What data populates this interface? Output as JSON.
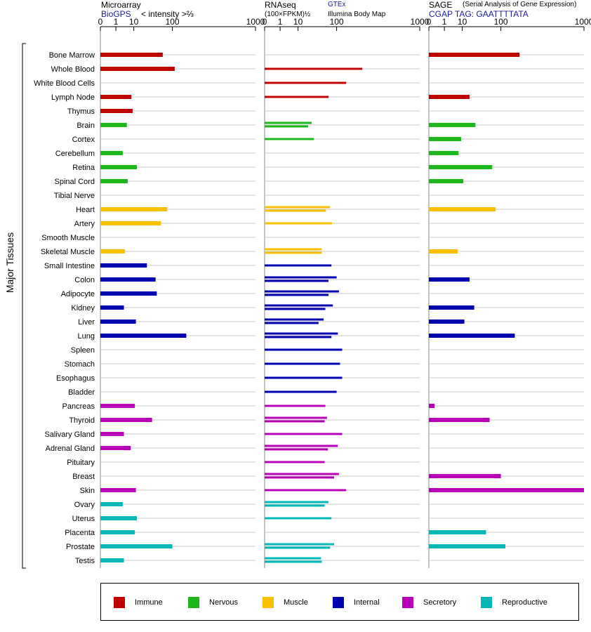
{
  "headers": {
    "microarray": {
      "title": "Microarray",
      "source": "BioGPS",
      "unit": "< intensity >⅔"
    },
    "rnaseq": {
      "title": "RNAseq",
      "unit": "(100×FPKM)½",
      "source": "GTEx",
      "source2": "Illumina Body Map"
    },
    "sage": {
      "title": "SAGE",
      "subtitle": "(Serial Analysis of Gene Expression)",
      "tag": "CGAP TAG: GAATTTTATA"
    }
  },
  "y_axis_label": "Major Tissues",
  "legend": [
    {
      "label": "Immune",
      "color": "#c00000"
    },
    {
      "label": "Nervous",
      "color": "#1ab81a"
    },
    {
      "label": "Muscle",
      "color": "#f8c000"
    },
    {
      "label": "Internal",
      "color": "#0000b0"
    },
    {
      "label": "Secretory",
      "color": "#b800b8"
    },
    {
      "label": "Reproductive",
      "color": "#00b8b8"
    }
  ],
  "chart_data": {
    "type": "bar",
    "scale": "power",
    "tick_labels": [
      "0",
      "1",
      "10",
      "100",
      "1000"
    ],
    "xlim": [
      0,
      1000
    ],
    "categories": [
      "Bone Marrow",
      "Whole Blood",
      "White Blood Cells",
      "Lymph Node",
      "Thymus",
      "Brain",
      "Cortex",
      "Cerebellum",
      "Retina",
      "Spinal Cord",
      "Tibial Nerve",
      "Heart",
      "Artery",
      "Smooth Muscle",
      "Skeletal Muscle",
      "Small Intestine",
      "Colon",
      "Adipocyte",
      "Kidney",
      "Liver",
      "Lung",
      "Spleen",
      "Stomach",
      "Esophagus",
      "Bladder",
      "Pancreas",
      "Thyroid",
      "Salivary Gland",
      "Adrenal Gland",
      "Pituitary",
      "Breast",
      "Skin",
      "Ovary",
      "Uterus",
      "Placenta",
      "Prostate",
      "Testis"
    ],
    "systems": [
      "Immune",
      "Immune",
      "Immune",
      "Immune",
      "Immune",
      "Nervous",
      "Nervous",
      "Nervous",
      "Nervous",
      "Nervous",
      "Nervous",
      "Muscle",
      "Muscle",
      "Muscle",
      "Muscle",
      "Internal",
      "Internal",
      "Internal",
      "Internal",
      "Internal",
      "Internal",
      "Internal",
      "Internal",
      "Internal",
      "Internal",
      "Secretory",
      "Secretory",
      "Secretory",
      "Secretory",
      "Secretory",
      "Secretory",
      "Secretory",
      "Reproductive",
      "Reproductive",
      "Reproductive",
      "Reproductive",
      "Reproductive"
    ],
    "series": [
      {
        "name": "Microarray",
        "values": [
          65,
          110,
          null,
          8,
          9,
          5,
          null,
          3,
          13,
          5.5,
          null,
          80,
          60,
          null,
          4,
          27,
          45,
          48,
          3.5,
          12,
          170,
          null,
          null,
          null,
          null,
          11,
          37,
          3.5,
          7.5,
          null,
          null,
          12,
          3,
          13,
          11,
          100,
          3.5
        ]
      },
      {
        "name": "RNAseq",
        "values": [
          [
            null
          ],
          [
            250
          ],
          [
            145
          ],
          [
            70
          ],
          [
            null
          ],
          [
            28,
            22
          ],
          [
            32
          ],
          [
            null
          ],
          [
            null
          ],
          [
            null
          ],
          [
            null
          ],
          [
            75,
            62
          ],
          [
            82
          ],
          [
            null
          ],
          [
            50,
            50
          ],
          [
            80
          ],
          [
            100,
            70
          ],
          [
            110,
            70
          ],
          [
            85,
            60
          ],
          [
            55,
            42
          ],
          [
            105,
            80
          ],
          [
            125
          ],
          [
            115
          ],
          [
            125
          ],
          [
            100
          ],
          [
            60
          ],
          [
            65,
            58
          ],
          [
            125
          ],
          [
            105,
            68
          ],
          [
            58
          ],
          [
            110,
            90
          ],
          [
            145
          ],
          [
            70,
            58
          ],
          [
            80
          ],
          [
            null
          ],
          [
            90,
            75
          ],
          [
            48,
            50
          ]
        ]
      },
      {
        "name": "SAGE",
        "values": [
          200,
          null,
          null,
          18,
          null,
          27,
          9,
          7,
          68,
          11,
          null,
          80,
          null,
          null,
          6.5,
          null,
          18,
          null,
          25,
          12,
          170,
          null,
          null,
          null,
          null,
          0.05,
          60,
          null,
          null,
          null,
          100,
          1000,
          null,
          null,
          50,
          120,
          null
        ]
      }
    ]
  }
}
